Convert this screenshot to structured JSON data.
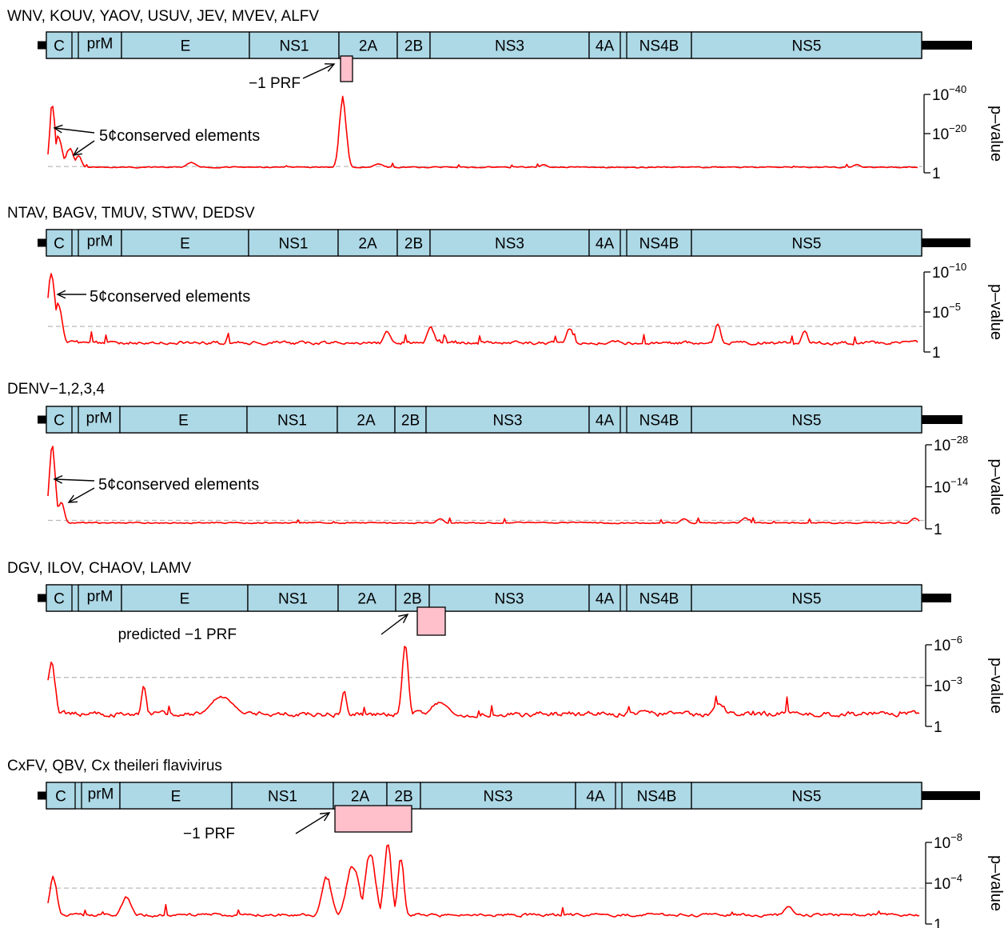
{
  "figure": {
    "panels": [
      {
        "id": "panel-1",
        "title": "WNV, KOUV, YAOV, USUV, JEV, MVEV, ALFV",
        "genes": [
          "C",
          "prM",
          "E",
          "NS1",
          "2A",
          "2B",
          "NS3",
          "4A",
          "NS4B",
          "NS5"
        ],
        "prf_label": "−1 PRF",
        "annotation": "5¢conserved elements",
        "annotation_arrows": 2,
        "axis_title": "p–value",
        "y_ticks": [
          {
            "base": "10",
            "exp": "−40"
          },
          {
            "base": "10",
            "exp": "−20"
          },
          {
            "base": "1",
            "exp": ""
          }
        ],
        "threshold_fraction": 0.08,
        "peaks": [
          {
            "pos": 0.005,
            "height": 0.92,
            "width": 0.004
          },
          {
            "pos": 0.012,
            "height": 0.45,
            "width": 0.006
          },
          {
            "pos": 0.025,
            "height": 0.28,
            "width": 0.006
          },
          {
            "pos": 0.035,
            "height": 0.18,
            "width": 0.005
          },
          {
            "pos": 0.165,
            "height": 0.08,
            "width": 0.008
          },
          {
            "pos": 0.339,
            "height": 1.0,
            "width": 0.0055
          },
          {
            "pos": 0.38,
            "height": 0.06,
            "width": 0.008
          },
          {
            "pos": 0.57,
            "height": 0.05,
            "width": 0.006
          },
          {
            "pos": 0.93,
            "height": 0.05,
            "width": 0.006
          }
        ],
        "noise": 0.025,
        "base": 0.02
      },
      {
        "id": "panel-2",
        "title": "NTAV, BAGV, TMUV, STWV, DEDSV",
        "genes": [
          "C",
          "prM",
          "E",
          "NS1",
          "2A",
          "2B",
          "NS3",
          "4A",
          "NS4B",
          "NS5"
        ],
        "annotation": "5¢conserved elements",
        "annotation_arrows": 1,
        "axis_title": "p–value",
        "y_ticks": [
          {
            "base": "10",
            "exp": "−10"
          },
          {
            "base": "10",
            "exp": "−5"
          },
          {
            "base": "1",
            "exp": ""
          }
        ],
        "threshold_fraction": 0.32,
        "peaks": [
          {
            "pos": 0.004,
            "height": 1.0,
            "width": 0.006
          },
          {
            "pos": 0.012,
            "height": 0.6,
            "width": 0.006
          },
          {
            "pos": 0.39,
            "height": 0.2,
            "width": 0.006
          },
          {
            "pos": 0.44,
            "height": 0.26,
            "width": 0.006
          },
          {
            "pos": 0.6,
            "height": 0.24,
            "width": 0.006
          },
          {
            "pos": 0.77,
            "height": 0.3,
            "width": 0.005
          },
          {
            "pos": 0.87,
            "height": 0.2,
            "width": 0.005
          }
        ],
        "noise": 0.08,
        "base": 0.04
      },
      {
        "id": "panel-3",
        "title": "DENV−1,2,3,4",
        "genes": [
          "C",
          "prM",
          "E",
          "NS1",
          "2A",
          "2B",
          "NS3",
          "4A",
          "NS4B",
          "NS5"
        ],
        "annotation": "5¢conserved elements",
        "annotation_arrows": 2,
        "axis_title": "p–value",
        "y_ticks": [
          {
            "base": "10",
            "exp": "−28"
          },
          {
            "base": "10",
            "exp": "−14"
          },
          {
            "base": "1",
            "exp": ""
          }
        ],
        "threshold_fraction": 0.1,
        "peaks": [
          {
            "pos": 0.005,
            "height": 1.0,
            "width": 0.005
          },
          {
            "pos": 0.015,
            "height": 0.3,
            "width": 0.005
          },
          {
            "pos": 0.45,
            "height": 0.07,
            "width": 0.006
          },
          {
            "pos": 0.73,
            "height": 0.07,
            "width": 0.006
          },
          {
            "pos": 0.8,
            "height": 0.08,
            "width": 0.006
          },
          {
            "pos": 0.995,
            "height": 0.08,
            "width": 0.006
          }
        ],
        "noise": 0.03,
        "base": 0.02
      },
      {
        "id": "panel-4",
        "title": "DGV, ILOV, CHAOV, LAMV",
        "genes": [
          "C",
          "prM",
          "E",
          "NS1",
          "2A",
          "2B",
          "NS3",
          "4A",
          "NS4B",
          "NS5"
        ],
        "prf_label": "predicted −1 PRF",
        "axis_title": "p–value",
        "y_ticks": [
          {
            "base": "10",
            "exp": "−6"
          },
          {
            "base": "10",
            "exp": "−3"
          },
          {
            "base": "1",
            "exp": ""
          }
        ],
        "threshold_fraction": 0.6,
        "peaks": [
          {
            "pos": 0.004,
            "height": 0.78,
            "width": 0.006
          },
          {
            "pos": 0.11,
            "height": 0.45,
            "width": 0.004
          },
          {
            "pos": 0.2,
            "height": 0.3,
            "width": 0.02
          },
          {
            "pos": 0.34,
            "height": 0.38,
            "width": 0.004
          },
          {
            "pos": 0.41,
            "height": 1.0,
            "width": 0.005
          },
          {
            "pos": 0.45,
            "height": 0.22,
            "width": 0.015
          },
          {
            "pos": 0.77,
            "height": 0.2,
            "width": 0.01
          }
        ],
        "noise": 0.12,
        "base": 0.06
      },
      {
        "id": "panel-5",
        "title": "CxFV, QBV, Cx theileri flavivirus",
        "genes": [
          "C",
          "prM",
          "E",
          "NS1",
          "2A",
          "2B",
          "NS3",
          "4A",
          "NS4B",
          "NS5"
        ],
        "prf_label": "−1 PRF",
        "axis_title": "p–value",
        "y_ticks": [
          {
            "base": "10",
            "exp": "−8"
          },
          {
            "base": "10",
            "exp": "−4"
          },
          {
            "base": "1",
            "exp": ""
          }
        ],
        "threshold_fraction": 0.44,
        "peaks": [
          {
            "pos": 0.006,
            "height": 0.55,
            "width": 0.006
          },
          {
            "pos": 0.09,
            "height": 0.28,
            "width": 0.008
          },
          {
            "pos": 0.32,
            "height": 0.55,
            "width": 0.008
          },
          {
            "pos": 0.35,
            "height": 0.72,
            "width": 0.01
          },
          {
            "pos": 0.37,
            "height": 0.9,
            "width": 0.008
          },
          {
            "pos": 0.39,
            "height": 1.0,
            "width": 0.006
          },
          {
            "pos": 0.405,
            "height": 0.8,
            "width": 0.005
          },
          {
            "pos": 0.85,
            "height": 0.15,
            "width": 0.008
          }
        ],
        "noise": 0.07,
        "base": 0.04
      }
    ],
    "colors": {
      "gene_fill": "#add8e6",
      "prf_fill": "#ffc0cb",
      "trace": "#ff0000",
      "threshold": "#bbbbbb"
    }
  }
}
